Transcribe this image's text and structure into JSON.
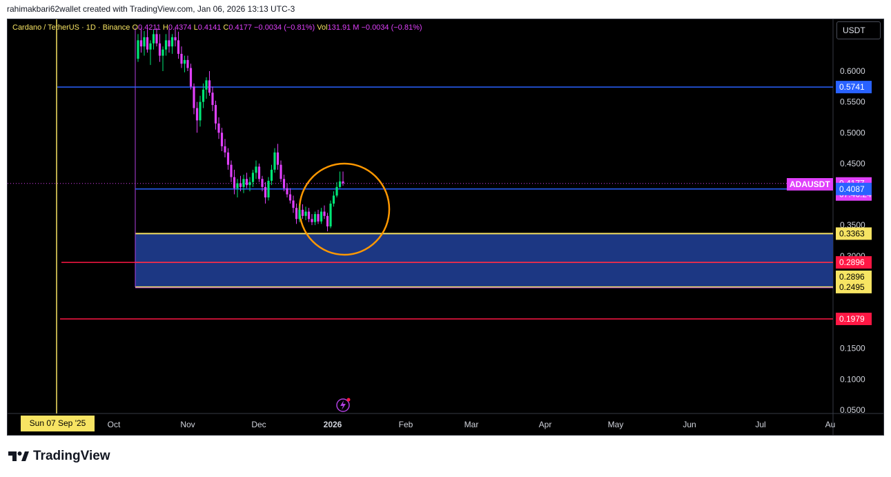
{
  "attribution": "rahimakbari62wallet created with TradingView.com, Jan 06, 2026 13:13 UTC-3",
  "legend": {
    "symbol": "Cardano / TetherUS · 1D · Binance",
    "open_label": "O",
    "open": "0.4211",
    "high_label": "H",
    "high": "0.4374",
    "low_label": "L",
    "low": "0.4141",
    "close_label": "C",
    "close": "0.4177",
    "change": "−0.0034 (−0.81%)",
    "vol_label": "Vol",
    "vol": "131.91 M",
    "vol_change": "−0.0034 (−0.81%)"
  },
  "currency_button": "USDT",
  "date_badge": "Sun 07 Sep '25",
  "logo_text": "TradingView",
  "symbol_tag": "ADAUSDT",
  "colors": {
    "up": "#00e676",
    "down": "#e040fb",
    "blue_line": "#2962ff",
    "red_line": "#ff1744",
    "zone_fill": "#1e3a8a",
    "zone_border": "#f7e463",
    "circle": "#ff9800"
  },
  "chart_data": {
    "type": "candlestick",
    "xlabels": [
      "Oct",
      "Nov",
      "Dec",
      "2026",
      "Feb",
      "Mar",
      "Apr",
      "May",
      "Jun",
      "Jul",
      "Au"
    ],
    "y_ticks": [
      "0.6000",
      "0.5500",
      "0.5000",
      "0.4500",
      "0.3500",
      "0.3000",
      "0.1500",
      "0.1000",
      "0.0500"
    ],
    "ylim": [
      0.04,
      0.67
    ],
    "candles": [
      {
        "o": 0.62,
        "h": 0.66,
        "l": 0.615,
        "c": 0.65
      },
      {
        "o": 0.65,
        "h": 0.67,
        "l": 0.63,
        "c": 0.64
      },
      {
        "o": 0.64,
        "h": 0.665,
        "l": 0.625,
        "c": 0.655
      },
      {
        "o": 0.655,
        "h": 0.67,
        "l": 0.63,
        "c": 0.635
      },
      {
        "o": 0.635,
        "h": 0.65,
        "l": 0.61,
        "c": 0.645
      },
      {
        "o": 0.645,
        "h": 0.668,
        "l": 0.635,
        "c": 0.66
      },
      {
        "o": 0.66,
        "h": 0.67,
        "l": 0.64,
        "c": 0.645
      },
      {
        "o": 0.645,
        "h": 0.66,
        "l": 0.615,
        "c": 0.625
      },
      {
        "o": 0.625,
        "h": 0.64,
        "l": 0.6,
        "c": 0.635
      },
      {
        "o": 0.635,
        "h": 0.66,
        "l": 0.625,
        "c": 0.65
      },
      {
        "o": 0.65,
        "h": 0.668,
        "l": 0.63,
        "c": 0.64
      },
      {
        "o": 0.64,
        "h": 0.66,
        "l": 0.628,
        "c": 0.655
      },
      {
        "o": 0.655,
        "h": 0.67,
        "l": 0.64,
        "c": 0.65
      },
      {
        "o": 0.65,
        "h": 0.664,
        "l": 0.62,
        "c": 0.628
      },
      {
        "o": 0.628,
        "h": 0.64,
        "l": 0.605,
        "c": 0.612
      },
      {
        "o": 0.612,
        "h": 0.625,
        "l": 0.598,
        "c": 0.618
      },
      {
        "o": 0.618,
        "h": 0.625,
        "l": 0.6,
        "c": 0.605
      },
      {
        "o": 0.605,
        "h": 0.612,
        "l": 0.57,
        "c": 0.575
      },
      {
        "o": 0.575,
        "h": 0.58,
        "l": 0.53,
        "c": 0.54
      },
      {
        "o": 0.54,
        "h": 0.55,
        "l": 0.5,
        "c": 0.52
      },
      {
        "o": 0.52,
        "h": 0.56,
        "l": 0.51,
        "c": 0.55
      },
      {
        "o": 0.55,
        "h": 0.58,
        "l": 0.54,
        "c": 0.57
      },
      {
        "o": 0.57,
        "h": 0.59,
        "l": 0.555,
        "c": 0.585
      },
      {
        "o": 0.585,
        "h": 0.6,
        "l": 0.56,
        "c": 0.565
      },
      {
        "o": 0.565,
        "h": 0.575,
        "l": 0.535,
        "c": 0.545
      },
      {
        "o": 0.545,
        "h": 0.552,
        "l": 0.505,
        "c": 0.515
      },
      {
        "o": 0.515,
        "h": 0.525,
        "l": 0.49,
        "c": 0.5
      },
      {
        "o": 0.5,
        "h": 0.508,
        "l": 0.47,
        "c": 0.478
      },
      {
        "o": 0.478,
        "h": 0.49,
        "l": 0.46,
        "c": 0.468
      },
      {
        "o": 0.468,
        "h": 0.475,
        "l": 0.44,
        "c": 0.448
      },
      {
        "o": 0.448,
        "h": 0.455,
        "l": 0.42,
        "c": 0.428
      },
      {
        "o": 0.428,
        "h": 0.44,
        "l": 0.4,
        "c": 0.41
      },
      {
        "o": 0.41,
        "h": 0.425,
        "l": 0.395,
        "c": 0.418
      },
      {
        "o": 0.418,
        "h": 0.43,
        "l": 0.405,
        "c": 0.412
      },
      {
        "o": 0.412,
        "h": 0.432,
        "l": 0.402,
        "c": 0.425
      },
      {
        "o": 0.425,
        "h": 0.435,
        "l": 0.41,
        "c": 0.415
      },
      {
        "o": 0.415,
        "h": 0.428,
        "l": 0.405,
        "c": 0.42
      },
      {
        "o": 0.42,
        "h": 0.44,
        "l": 0.412,
        "c": 0.435
      },
      {
        "o": 0.435,
        "h": 0.455,
        "l": 0.425,
        "c": 0.445
      },
      {
        "o": 0.445,
        "h": 0.45,
        "l": 0.42,
        "c": 0.425
      },
      {
        "o": 0.425,
        "h": 0.43,
        "l": 0.405,
        "c": 0.412
      },
      {
        "o": 0.412,
        "h": 0.42,
        "l": 0.385,
        "c": 0.395
      },
      {
        "o": 0.395,
        "h": 0.428,
        "l": 0.39,
        "c": 0.422
      },
      {
        "o": 0.422,
        "h": 0.448,
        "l": 0.415,
        "c": 0.44
      },
      {
        "o": 0.44,
        "h": 0.475,
        "l": 0.435,
        "c": 0.468
      },
      {
        "o": 0.468,
        "h": 0.482,
        "l": 0.44,
        "c": 0.448
      },
      {
        "o": 0.448,
        "h": 0.455,
        "l": 0.42,
        "c": 0.425
      },
      {
        "o": 0.425,
        "h": 0.432,
        "l": 0.405,
        "c": 0.41
      },
      {
        "o": 0.41,
        "h": 0.418,
        "l": 0.395,
        "c": 0.4
      },
      {
        "o": 0.4,
        "h": 0.41,
        "l": 0.385,
        "c": 0.39
      },
      {
        "o": 0.39,
        "h": 0.398,
        "l": 0.37,
        "c": 0.378
      },
      {
        "o": 0.378,
        "h": 0.385,
        "l": 0.352,
        "c": 0.36
      },
      {
        "o": 0.36,
        "h": 0.382,
        "l": 0.355,
        "c": 0.375
      },
      {
        "o": 0.375,
        "h": 0.384,
        "l": 0.36,
        "c": 0.365
      },
      {
        "o": 0.365,
        "h": 0.38,
        "l": 0.358,
        "c": 0.372
      },
      {
        "o": 0.372,
        "h": 0.378,
        "l": 0.355,
        "c": 0.36
      },
      {
        "o": 0.36,
        "h": 0.368,
        "l": 0.35,
        "c": 0.355
      },
      {
        "o": 0.355,
        "h": 0.372,
        "l": 0.35,
        "c": 0.368
      },
      {
        "o": 0.368,
        "h": 0.375,
        "l": 0.352,
        "c": 0.356
      },
      {
        "o": 0.356,
        "h": 0.378,
        "l": 0.352,
        "c": 0.372
      },
      {
        "o": 0.372,
        "h": 0.382,
        "l": 0.36,
        "c": 0.365
      },
      {
        "o": 0.365,
        "h": 0.37,
        "l": 0.34,
        "c": 0.348
      },
      {
        "o": 0.348,
        "h": 0.39,
        "l": 0.345,
        "c": 0.385
      },
      {
        "o": 0.385,
        "h": 0.405,
        "l": 0.38,
        "c": 0.398
      },
      {
        "o": 0.398,
        "h": 0.42,
        "l": 0.395,
        "c": 0.412
      },
      {
        "o": 0.412,
        "h": 0.437,
        "l": 0.41,
        "c": 0.421
      },
      {
        "o": 0.421,
        "h": 0.437,
        "l": 0.414,
        "c": 0.418
      }
    ],
    "horizontal_levels": [
      {
        "value": 0.5741,
        "color": "#2962ff",
        "label": "0.5741"
      },
      {
        "value": 0.4087,
        "color": "#2962ff",
        "label": "0.4087"
      },
      {
        "value": 0.2896,
        "color": "#ff1744",
        "label": "0.2896"
      },
      {
        "value": 0.1979,
        "color": "#ff1744",
        "label": "0.1979"
      }
    ],
    "zone": {
      "top": 0.3363,
      "mid": 0.2896,
      "bottom": 0.2495,
      "labels": [
        "0.3363",
        "0.2896",
        "0.2495"
      ]
    },
    "last_price": {
      "value": 0.4177,
      "label": "0.4177",
      "countdown": "07:46:24"
    }
  }
}
